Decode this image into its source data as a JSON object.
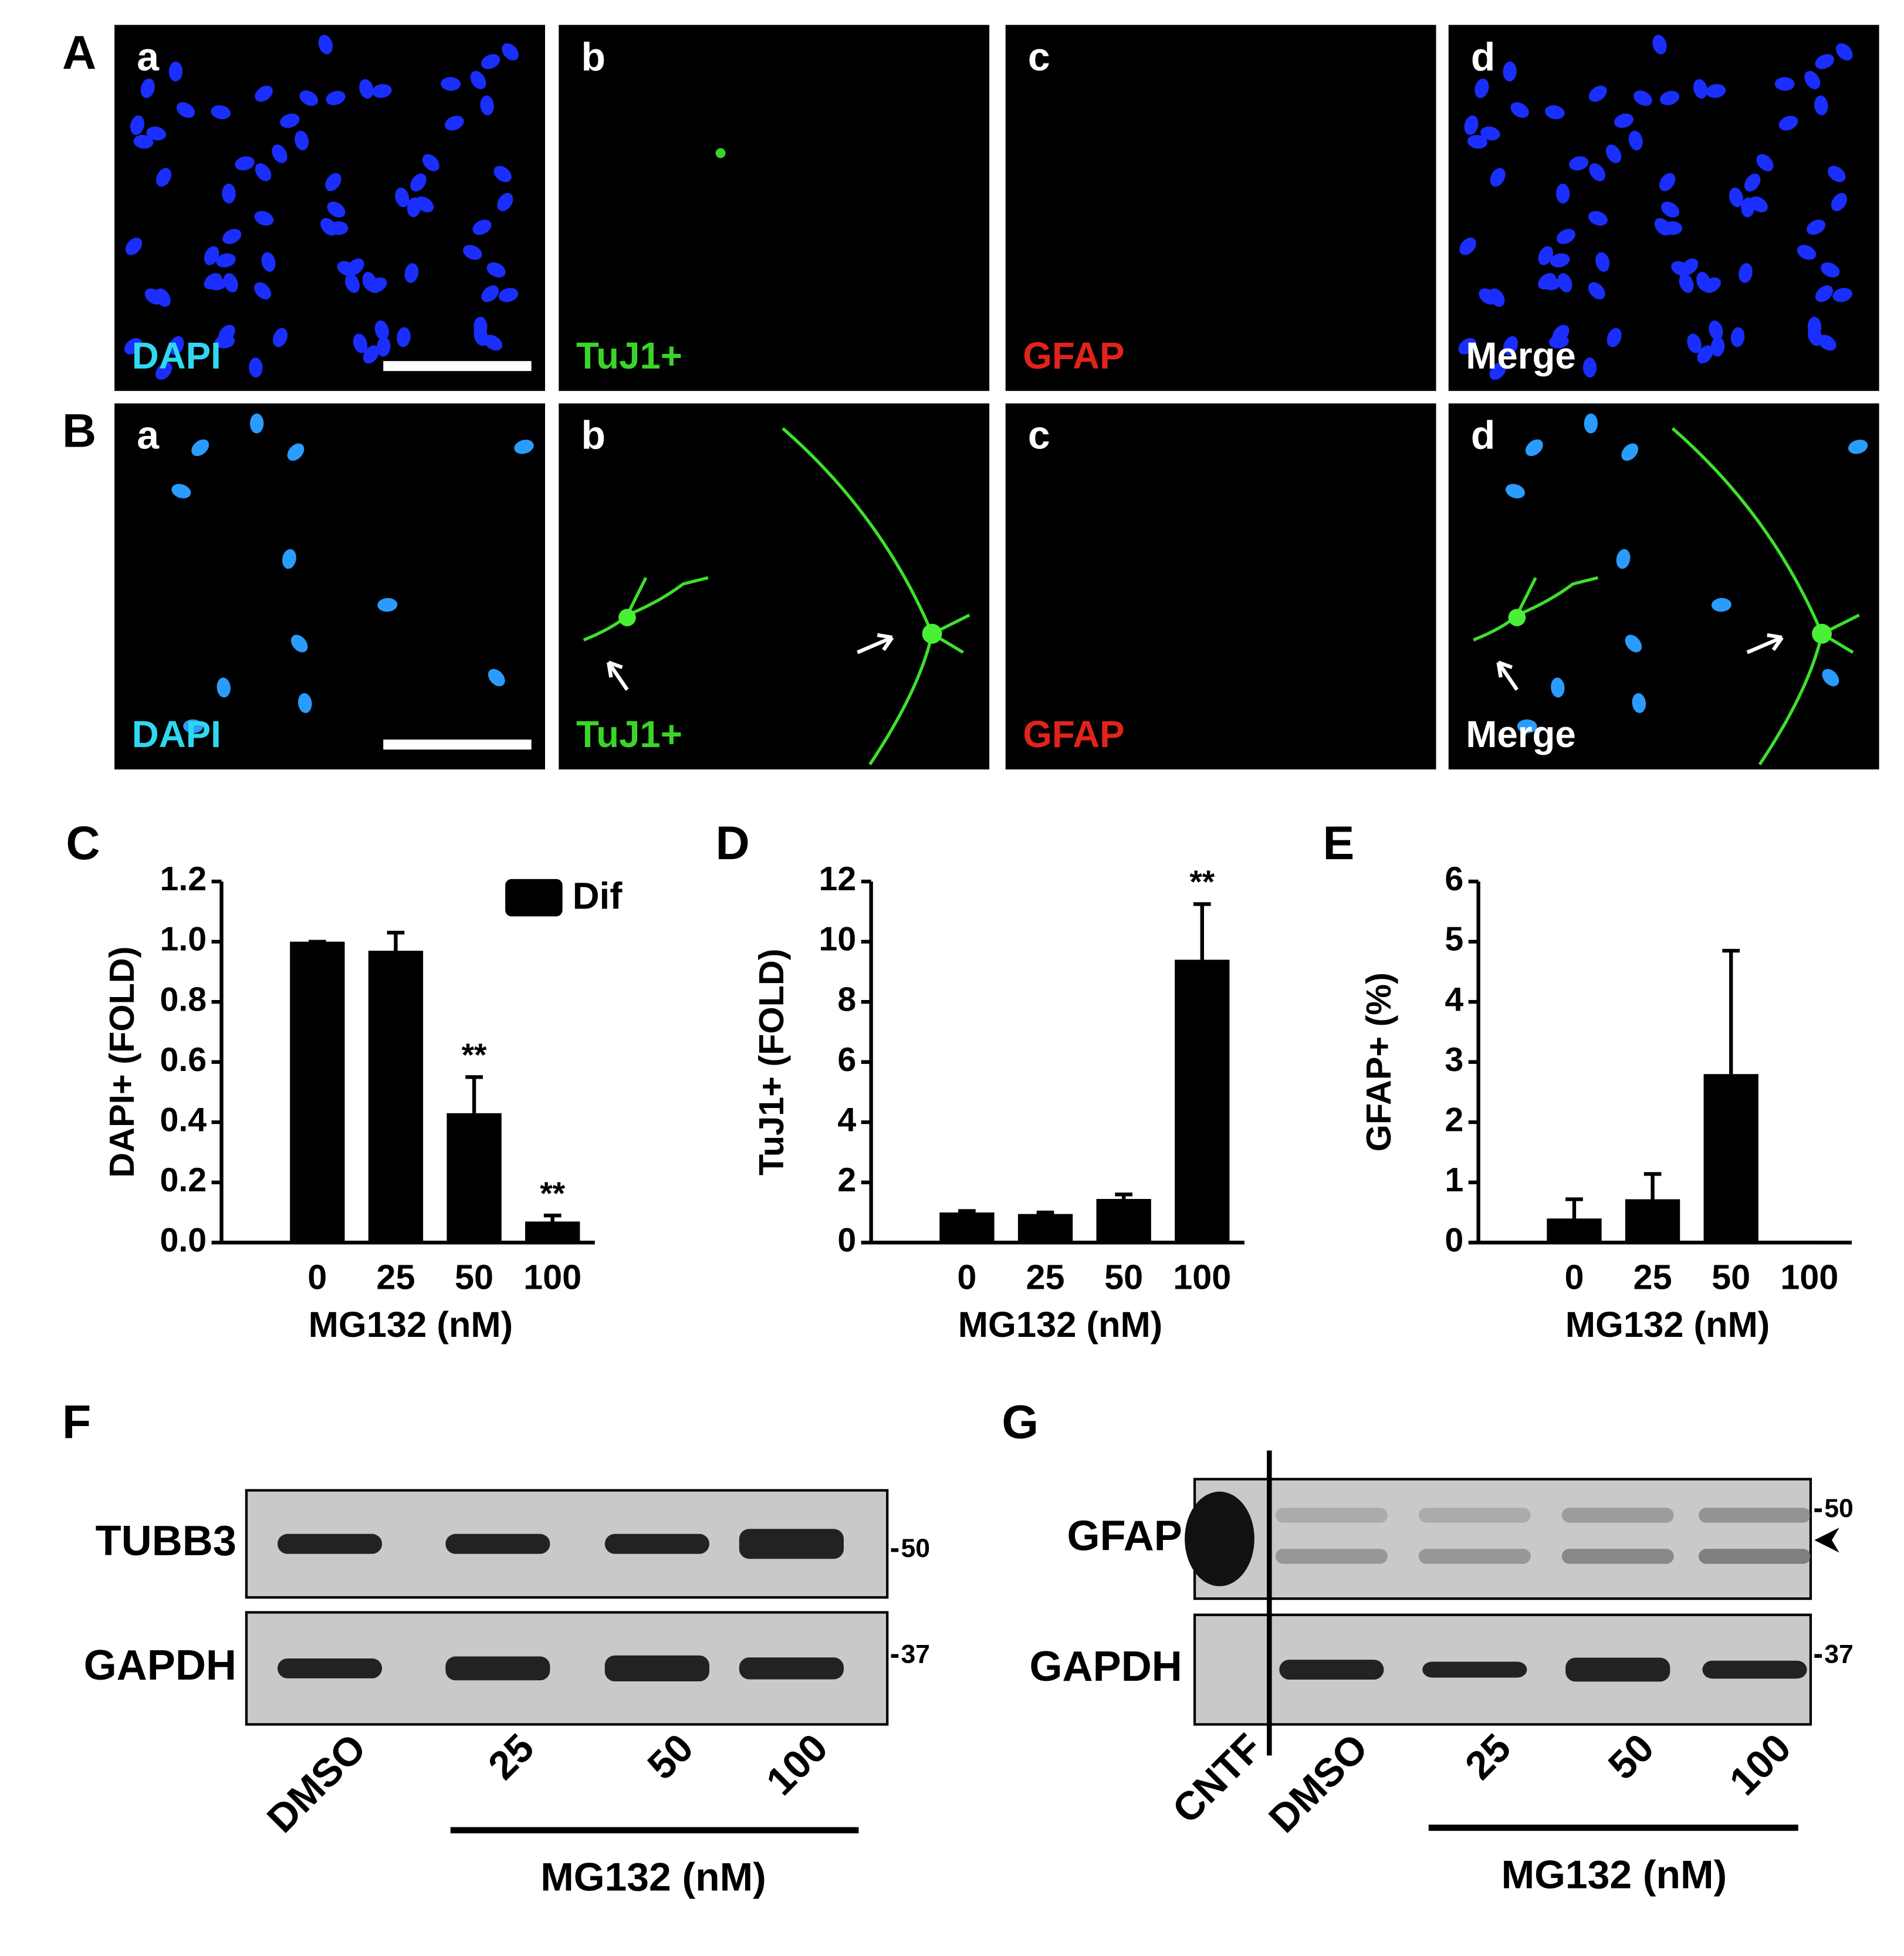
{
  "micrographs": {
    "rows": [
      {
        "label": "A",
        "panels": [
          {
            "letter": "a",
            "stain": "DAPI"
          },
          {
            "letter": "b",
            "stain": "TuJ1+"
          },
          {
            "letter": "c",
            "stain": "GFAP"
          },
          {
            "letter": "d",
            "stain": "Merge"
          }
        ]
      },
      {
        "label": "B",
        "panels": [
          {
            "letter": "a",
            "stain": "DAPI"
          },
          {
            "letter": "b",
            "stain": "TuJ1+"
          },
          {
            "letter": "c",
            "stain": "GFAP"
          },
          {
            "letter": "d",
            "stain": "Merge"
          }
        ]
      }
    ]
  },
  "chart_data": [
    {
      "type": "bar",
      "panel": "C",
      "y_label": "DAPI+ (FOLD)",
      "x_label": "MG132 (nM)",
      "categories": [
        "0",
        "25",
        "50",
        "100"
      ],
      "series": [
        {
          "name": "Dif",
          "color": "#000000",
          "values": [
            1.0,
            0.97,
            0.43,
            0.07
          ],
          "errors": [
            0,
            0.06,
            0.12,
            0.02
          ]
        }
      ],
      "annotations": [
        null,
        null,
        "**",
        "**"
      ],
      "legend": "top-right",
      "ylim": [
        0,
        1.2
      ],
      "yticks": [
        {
          "value": 0,
          "label": "0.0"
        },
        0.2,
        0.4,
        0.6,
        0.8,
        {
          "value": 1,
          "label": "1.0"
        },
        1.2
      ]
    },
    {
      "type": "bar",
      "panel": "D",
      "y_label": "TuJ1+ (FOLD)",
      "x_label": "MG132 (nM)",
      "categories": [
        "0",
        "25",
        "50",
        "100"
      ],
      "color": "#000000",
      "values": [
        1.0,
        0.95,
        1.45,
        9.4
      ],
      "errors": [
        0.05,
        0.05,
        0.15,
        1.85
      ],
      "annotations": [
        null,
        null,
        null,
        "**"
      ],
      "ylim": [
        0,
        12
      ],
      "yticks": [
        0,
        2,
        4,
        6,
        8,
        10,
        12
      ]
    },
    {
      "type": "bar",
      "panel": "E",
      "y_label": "GFAP+ (%)",
      "x_label": "MG132 (nM)",
      "categories": [
        "0",
        "25",
        "50",
        "100"
      ],
      "color": "#000000",
      "values": [
        0.4,
        0.72,
        2.8,
        0
      ],
      "errors": [
        0.32,
        0.42,
        2.05,
        0
      ],
      "ylim": [
        0,
        6
      ],
      "yticks": [
        0,
        1,
        2,
        3,
        4,
        5,
        6
      ]
    }
  ],
  "blots": [
    {
      "panel": "F",
      "rows": [
        "TUBB3",
        "GAPDH"
      ],
      "markers": [
        "50",
        "37"
      ],
      "lanes": [
        "DMSO",
        "25",
        "50",
        "100"
      ],
      "group_label": "MG132 (nM)"
    },
    {
      "panel": "G",
      "rows": [
        "GFAP",
        "GAPDH"
      ],
      "markers": [
        "50",
        "37"
      ],
      "lanes": [
        "CNTF",
        "DMSO",
        "25",
        "50",
        "100"
      ],
      "group_label": "MG132 (nM)"
    }
  ]
}
